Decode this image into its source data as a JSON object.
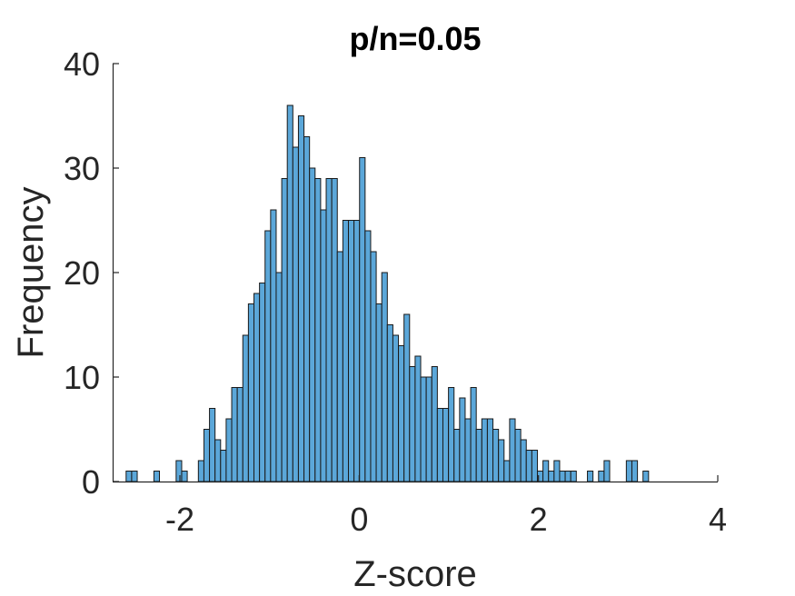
{
  "chart_data": {
    "type": "bar",
    "title": "p/n=0.05",
    "xlabel": "Z-score",
    "ylabel": "Frequency",
    "xlim": [
      -2.75,
      4
    ],
    "ylim": [
      0,
      40
    ],
    "xticks": [
      "-2",
      "0",
      "2",
      "4"
    ],
    "xtick_values": [
      -2,
      0,
      2,
      4
    ],
    "yticks": [
      "0",
      "10",
      "20",
      "30",
      "40"
    ],
    "ytick_values": [
      0,
      10,
      20,
      30,
      40
    ],
    "bin_start": -2.6,
    "bin_width": 0.062,
    "values": [
      1,
      1,
      0,
      0,
      0,
      1,
      0,
      0,
      0,
      2,
      1,
      0,
      0,
      2,
      5,
      7,
      4,
      3,
      6,
      9,
      9,
      14,
      17,
      18,
      19,
      24,
      26,
      20,
      29,
      36,
      32,
      35,
      33,
      30,
      29,
      26,
      29,
      29,
      22,
      25,
      25,
      25,
      31,
      24,
      22,
      17,
      20,
      15,
      14,
      13,
      16,
      11,
      12,
      10,
      10,
      11,
      7,
      7,
      9,
      5,
      8,
      6,
      9,
      5,
      6,
      6,
      5,
      4,
      2,
      6,
      5,
      4,
      3,
      3,
      1,
      2,
      1,
      2,
      1,
      1,
      1,
      0,
      0,
      1,
      0,
      1,
      2,
      0,
      0,
      0,
      2,
      2,
      0,
      1
    ],
    "bar_color": "#5BA7D9",
    "edge_color": "#1A1A1A",
    "grid": false,
    "legend": "none"
  }
}
